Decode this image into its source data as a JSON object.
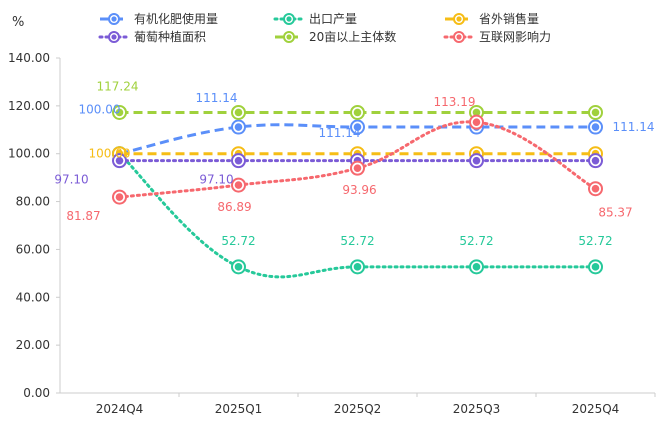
{
  "chart_data": {
    "type": "line",
    "unit": "%",
    "categories": [
      "2024Q4",
      "2025Q1",
      "2025Q2",
      "2025Q3",
      "2025Q4"
    ],
    "ylim": [
      0,
      140
    ],
    "yticks": [
      "0.00",
      "20.00",
      "40.00",
      "60.00",
      "80.00",
      "100.00",
      "120.00",
      "140.00"
    ],
    "grid": false,
    "legend_position": "top",
    "series": [
      {
        "name": "有机化肥使用量",
        "color": "#5b8ff9",
        "dash": "long",
        "smooth": true,
        "values": [
          100.0,
          111.14,
          111.14,
          111.14,
          111.14
        ],
        "labels": [
          "100.00",
          "111.14",
          "111.14",
          "",
          "111.14"
        ]
      },
      {
        "name": "出口产量",
        "color": "#26c99a",
        "dash": "dot",
        "smooth": true,
        "values": [
          100.0,
          52.72,
          52.72,
          52.72,
          52.72
        ],
        "labels": [
          "",
          "52.72",
          "52.72",
          "52.72",
          "52.72"
        ]
      },
      {
        "name": "省外销售量",
        "color": "#f6bd16",
        "dash": "long",
        "smooth": false,
        "values": [
          100.0,
          100.0,
          100.0,
          100.0,
          100.0
        ],
        "labels": [
          "100.00",
          "",
          "",
          "",
          ""
        ]
      },
      {
        "name": "葡萄种植面积",
        "color": "#7b5bd6",
        "dash": "dot",
        "smooth": false,
        "values": [
          97.1,
          97.1,
          97.1,
          97.1,
          97.1
        ],
        "labels": [
          "97.10",
          "97.10",
          "",
          "",
          ""
        ]
      },
      {
        "name": "20亩以上主体数",
        "color": "#a0d13c",
        "dash": "long",
        "smooth": false,
        "values": [
          117.24,
          117.24,
          117.24,
          117.24,
          117.24
        ],
        "labels": [
          "117.24",
          "",
          "",
          "",
          ""
        ]
      },
      {
        "name": "互联网影响力",
        "color": "#f6686e",
        "dash": "dot",
        "smooth": true,
        "values": [
          81.87,
          86.89,
          93.96,
          113.19,
          85.37
        ],
        "labels": [
          "81.87",
          "86.89",
          "93.96",
          "113.19",
          "85.37"
        ]
      }
    ]
  }
}
